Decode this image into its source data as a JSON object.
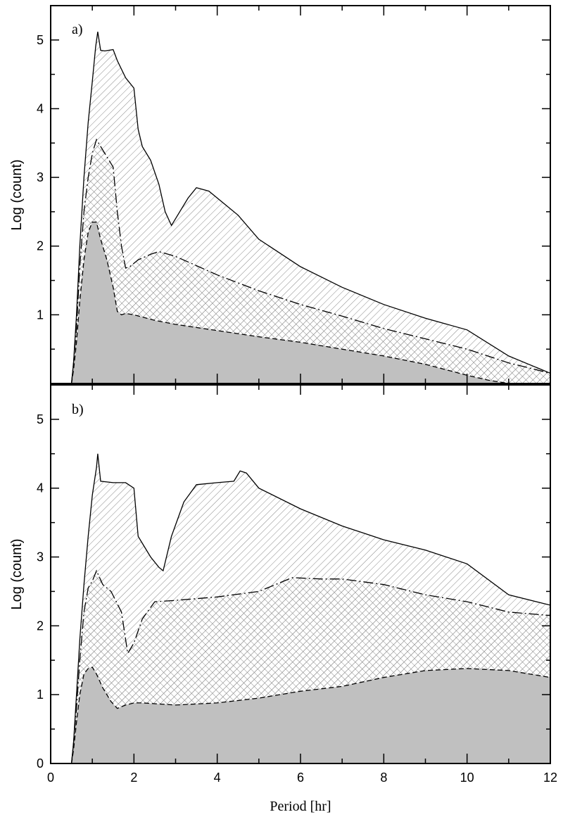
{
  "chart_data": [
    {
      "type": "area",
      "panel_label": "a)",
      "xlabel": "",
      "ylabel": "Log (count)",
      "xlim": [
        0,
        12
      ],
      "ylim": [
        0,
        5.5
      ],
      "yticks": [
        1,
        2,
        3,
        4,
        5
      ],
      "grid": false,
      "series": [
        {
          "style": "solid, diagonal hatch fill",
          "x": [
            0.5,
            0.55,
            0.62,
            0.7,
            0.8,
            0.9,
            1.0,
            1.08,
            1.13,
            1.2,
            1.3,
            1.5,
            1.6,
            1.8,
            2.0,
            2.1,
            2.2,
            2.4,
            2.6,
            2.75,
            2.9,
            3.1,
            3.3,
            3.5,
            3.8,
            4.2,
            4.5,
            5.0,
            6.0,
            7.0,
            8.0,
            9.0,
            10.0,
            11.0,
            12.0
          ],
          "y": [
            0.0,
            0.3,
            1.0,
            2.0,
            3.0,
            3.8,
            4.4,
            4.9,
            5.12,
            4.85,
            4.84,
            4.86,
            4.7,
            4.45,
            4.3,
            3.7,
            3.45,
            3.25,
            2.9,
            2.5,
            2.3,
            2.5,
            2.7,
            2.85,
            2.8,
            2.6,
            2.45,
            2.1,
            1.7,
            1.4,
            1.15,
            0.95,
            0.78,
            0.4,
            0.15
          ]
        },
        {
          "style": "dash-dot, crosshatch fill",
          "x": [
            0.5,
            0.55,
            0.62,
            0.7,
            0.8,
            0.9,
            1.0,
            1.1,
            1.2,
            1.35,
            1.5,
            1.6,
            1.7,
            1.8,
            1.9,
            2.1,
            2.4,
            2.6,
            3.0,
            4.0,
            5.0,
            6.0,
            7.0,
            8.0,
            9.0,
            10.0,
            11.0,
            12.0
          ],
          "y": [
            0.0,
            0.3,
            0.8,
            1.7,
            2.5,
            3.0,
            3.35,
            3.55,
            3.45,
            3.3,
            3.15,
            2.5,
            2.0,
            1.68,
            1.7,
            1.8,
            1.88,
            1.92,
            1.85,
            1.58,
            1.35,
            1.15,
            0.98,
            0.8,
            0.65,
            0.5,
            0.3,
            0.15
          ]
        },
        {
          "style": "dashed, grey fill",
          "x": [
            0.5,
            0.55,
            0.62,
            0.7,
            0.8,
            0.9,
            1.0,
            1.1,
            1.2,
            1.35,
            1.5,
            1.6,
            1.7,
            1.8,
            2.0,
            2.5,
            3.0,
            4.0,
            5.0,
            6.0,
            7.0,
            8.0,
            9.0,
            10.0,
            10.5,
            11.0
          ],
          "y": [
            0.0,
            0.2,
            0.6,
            1.2,
            1.8,
            2.2,
            2.35,
            2.35,
            2.1,
            1.8,
            1.4,
            1.05,
            1.0,
            1.02,
            1.0,
            0.92,
            0.86,
            0.77,
            0.68,
            0.6,
            0.5,
            0.4,
            0.28,
            0.12,
            0.05,
            0.0
          ]
        }
      ]
    },
    {
      "type": "area",
      "panel_label": "b)",
      "xlabel": "Period [hr]",
      "ylabel": "Log (count)",
      "xlim": [
        0,
        12
      ],
      "ylim": [
        0,
        5.5
      ],
      "xticks": [
        0,
        2,
        4,
        6,
        8,
        10,
        12
      ],
      "yticks": [
        0,
        1,
        2,
        3,
        4,
        5
      ],
      "grid": false,
      "series": [
        {
          "style": "solid, diagonal hatch fill",
          "x": [
            0.5,
            0.55,
            0.62,
            0.7,
            0.8,
            0.9,
            1.0,
            1.1,
            1.13,
            1.2,
            1.5,
            1.8,
            2.0,
            2.1,
            2.2,
            2.4,
            2.6,
            2.7,
            2.9,
            3.2,
            3.5,
            4.0,
            4.4,
            4.55,
            4.7,
            5.0,
            6.0,
            7.0,
            8.0,
            9.0,
            10.0,
            11.0,
            12.0
          ],
          "y": [
            0.0,
            0.3,
            1.0,
            1.8,
            2.6,
            3.3,
            3.9,
            4.3,
            4.5,
            4.1,
            4.08,
            4.08,
            4.0,
            3.3,
            3.2,
            3.0,
            2.85,
            2.8,
            3.3,
            3.8,
            4.05,
            4.08,
            4.1,
            4.25,
            4.22,
            4.0,
            3.7,
            3.45,
            3.25,
            3.1,
            2.9,
            2.45,
            2.3
          ]
        },
        {
          "style": "dash-dot, crosshatch fill",
          "x": [
            0.5,
            0.55,
            0.62,
            0.7,
            0.8,
            0.9,
            1.0,
            1.1,
            1.25,
            1.45,
            1.7,
            1.85,
            2.0,
            2.2,
            2.5,
            3.0,
            4.0,
            5.0,
            5.8,
            6.5,
            7.0,
            8.0,
            9.0,
            10.0,
            11.0,
            12.0
          ],
          "y": [
            0.0,
            0.3,
            0.8,
            1.5,
            2.2,
            2.55,
            2.65,
            2.8,
            2.6,
            2.5,
            2.2,
            1.6,
            1.75,
            2.1,
            2.35,
            2.37,
            2.42,
            2.5,
            2.7,
            2.68,
            2.68,
            2.6,
            2.45,
            2.35,
            2.2,
            2.15
          ]
        },
        {
          "style": "dashed, grey fill",
          "x": [
            0.5,
            0.55,
            0.62,
            0.7,
            0.8,
            0.9,
            1.0,
            1.1,
            1.25,
            1.45,
            1.6,
            1.8,
            2.0,
            2.2,
            3.0,
            4.0,
            5.0,
            6.0,
            7.0,
            8.0,
            9.0,
            10.0,
            11.0,
            12.0
          ],
          "y": [
            0.0,
            0.2,
            0.6,
            1.0,
            1.3,
            1.38,
            1.4,
            1.3,
            1.1,
            0.9,
            0.8,
            0.85,
            0.88,
            0.88,
            0.85,
            0.88,
            0.95,
            1.05,
            1.12,
            1.25,
            1.35,
            1.38,
            1.35,
            1.25
          ]
        }
      ]
    }
  ]
}
